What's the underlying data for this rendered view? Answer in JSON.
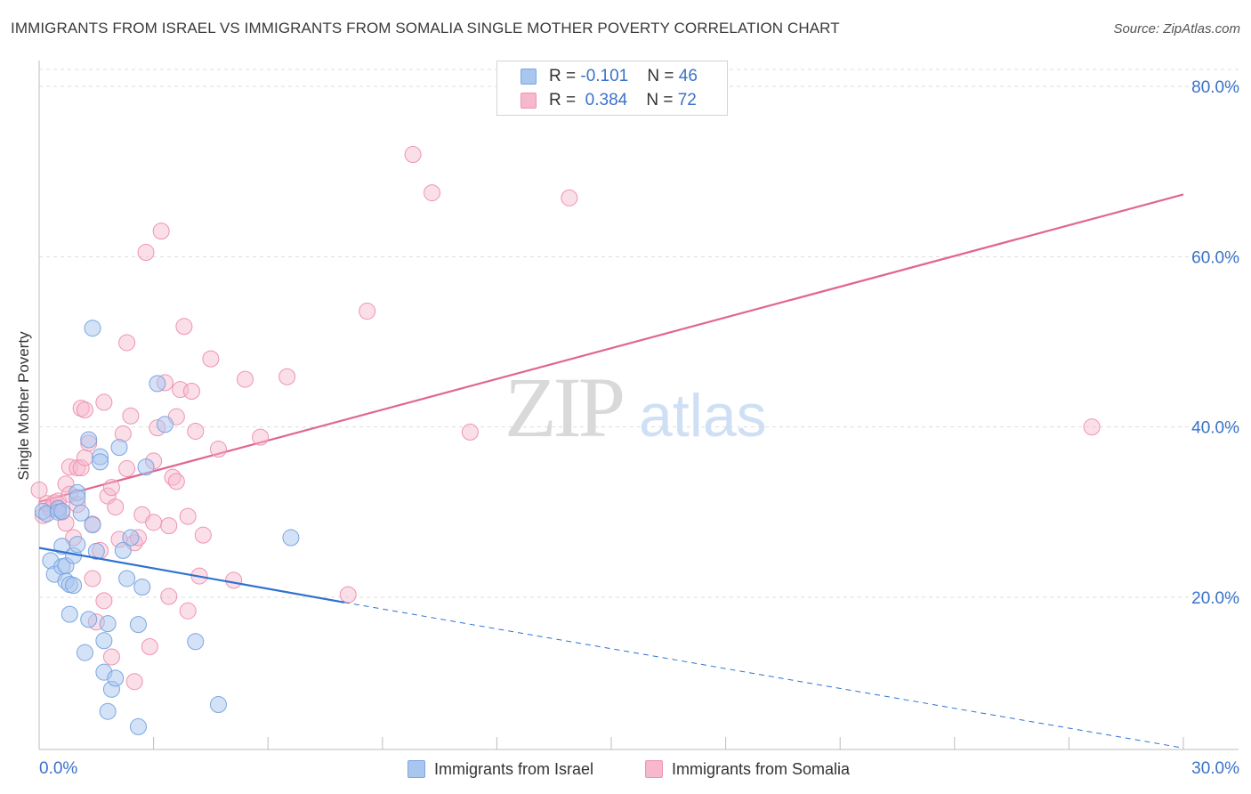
{
  "header": {
    "title": "IMMIGRANTS FROM ISRAEL VS IMMIGRANTS FROM SOMALIA SINGLE MOTHER POVERTY CORRELATION CHART",
    "source": "Source: ZipAtlas.com"
  },
  "watermark": {
    "zip": "ZIP",
    "atlas": "atlas"
  },
  "legend": {
    "israel": {
      "r_label": "R = ",
      "r_value": "-0.101",
      "n_label": "N = ",
      "n_value": "46"
    },
    "somalia": {
      "r_label": "R = ",
      "r_value": "0.384",
      "n_label": "N = ",
      "n_value": "72"
    }
  },
  "bottom_legend": {
    "israel": "Immigrants from Israel",
    "somalia": "Immigrants from Somalia"
  },
  "colors": {
    "israel_fill": "#a9c6ef",
    "israel_stroke": "#7aa6e0",
    "israel_line": "#2f72d0",
    "somalia_fill": "#f7b8cb",
    "somalia_stroke": "#ee93b1",
    "somalia_line": "#e06690",
    "axis_text": "#3a72c8",
    "grid": "#dddddd"
  },
  "chart_data": {
    "type": "scatter",
    "title": "IMMIGRANTS FROM ISRAEL VS IMMIGRANTS FROM SOMALIA SINGLE MOTHER POVERTY CORRELATION CHART",
    "xlabel": "",
    "ylabel": "Single Mother Poverty",
    "xlim": [
      0,
      30
    ],
    "ylim": [
      0,
      85
    ],
    "x_tick_labels": [
      {
        "value": 0,
        "label": "0.0%"
      },
      {
        "value": 30,
        "label": "30.0%"
      }
    ],
    "y_tick_labels": [
      {
        "value": 20,
        "label": "20.0%"
      },
      {
        "value": 40,
        "label": "40.0%"
      },
      {
        "value": 60,
        "label": "60.0%"
      },
      {
        "value": 80,
        "label": "80.0%"
      }
    ],
    "x_ticks": [
      0,
      3,
      6,
      9,
      12,
      15,
      18,
      21,
      24,
      27,
      30
    ],
    "series": [
      {
        "name": "Immigrants from Israel",
        "r": -0.101,
        "n": 46,
        "trend": {
          "solid": [
            [
              0,
              25.8
            ],
            [
              8,
              19.4
            ]
          ],
          "dashed": [
            [
              8,
              19.4
            ],
            [
              30,
              2.3
            ]
          ]
        },
        "points": [
          [
            0.1,
            30.1
          ],
          [
            0.2,
            29.8
          ],
          [
            0.3,
            24.3
          ],
          [
            0.4,
            22.7
          ],
          [
            0.5,
            30.4
          ],
          [
            0.6,
            26.0
          ],
          [
            0.5,
            30.0
          ],
          [
            0.6,
            23.6
          ],
          [
            0.7,
            23.7
          ],
          [
            0.7,
            21.9
          ],
          [
            0.8,
            18.0
          ],
          [
            0.8,
            21.5
          ],
          [
            0.9,
            21.4
          ],
          [
            0.9,
            24.9
          ],
          [
            1.0,
            26.2
          ],
          [
            1.0,
            32.3
          ],
          [
            1.0,
            31.7
          ],
          [
            1.1,
            29.9
          ],
          [
            1.2,
            13.5
          ],
          [
            1.3,
            38.5
          ],
          [
            1.3,
            17.4
          ],
          [
            1.4,
            28.5
          ],
          [
            1.4,
            51.6
          ],
          [
            1.5,
            25.4
          ],
          [
            1.6,
            36.5
          ],
          [
            1.6,
            35.9
          ],
          [
            1.7,
            14.9
          ],
          [
            1.7,
            11.2
          ],
          [
            1.8,
            6.6
          ],
          [
            1.8,
            16.9
          ],
          [
            1.9,
            9.2
          ],
          [
            2.0,
            10.5
          ],
          [
            2.1,
            37.6
          ],
          [
            2.2,
            25.5
          ],
          [
            2.3,
            22.2
          ],
          [
            2.4,
            27.0
          ],
          [
            2.6,
            4.8
          ],
          [
            2.6,
            16.8
          ],
          [
            2.7,
            21.2
          ],
          [
            2.8,
            35.3
          ],
          [
            3.1,
            45.1
          ],
          [
            3.3,
            40.3
          ],
          [
            4.1,
            14.8
          ],
          [
            4.7,
            7.4
          ],
          [
            6.6,
            27.0
          ],
          [
            0.6,
            30.1
          ]
        ]
      },
      {
        "name": "Immigrants from Somalia",
        "r": 0.384,
        "n": 72,
        "trend": {
          "solid": [
            [
              0,
              31.2
            ],
            [
              30,
              67.3
            ]
          ]
        },
        "points": [
          [
            0.0,
            32.6
          ],
          [
            0.1,
            29.6
          ],
          [
            0.2,
            31.0
          ],
          [
            0.3,
            30.4
          ],
          [
            0.4,
            31.1
          ],
          [
            0.5,
            30.5
          ],
          [
            0.5,
            31.3
          ],
          [
            0.6,
            30.0
          ],
          [
            0.7,
            33.3
          ],
          [
            0.7,
            28.7
          ],
          [
            0.8,
            32.1
          ],
          [
            0.8,
            35.3
          ],
          [
            0.9,
            27.0
          ],
          [
            1.0,
            30.9
          ],
          [
            1.0,
            35.2
          ],
          [
            1.1,
            35.2
          ],
          [
            1.1,
            42.2
          ],
          [
            1.2,
            42.0
          ],
          [
            1.2,
            36.4
          ],
          [
            1.3,
            38.1
          ],
          [
            1.4,
            28.6
          ],
          [
            1.4,
            22.2
          ],
          [
            1.5,
            17.1
          ],
          [
            1.6,
            25.5
          ],
          [
            1.7,
            42.9
          ],
          [
            1.7,
            19.6
          ],
          [
            1.8,
            31.9
          ],
          [
            1.9,
            13.0
          ],
          [
            1.9,
            32.9
          ],
          [
            2.0,
            30.6
          ],
          [
            2.1,
            26.8
          ],
          [
            2.2,
            39.2
          ],
          [
            2.3,
            35.1
          ],
          [
            2.3,
            49.9
          ],
          [
            2.4,
            41.3
          ],
          [
            2.5,
            26.4
          ],
          [
            2.5,
            10.1
          ],
          [
            2.6,
            27.0
          ],
          [
            2.7,
            29.7
          ],
          [
            2.8,
            60.5
          ],
          [
            2.9,
            14.2
          ],
          [
            3.0,
            28.8
          ],
          [
            3.0,
            36.0
          ],
          [
            3.1,
            39.9
          ],
          [
            3.2,
            63.0
          ],
          [
            3.3,
            45.2
          ],
          [
            3.4,
            28.4
          ],
          [
            3.4,
            20.1
          ],
          [
            3.5,
            34.1
          ],
          [
            3.6,
            41.2
          ],
          [
            3.6,
            33.6
          ],
          [
            3.7,
            44.4
          ],
          [
            3.8,
            51.8
          ],
          [
            3.9,
            18.4
          ],
          [
            3.9,
            29.5
          ],
          [
            4.0,
            44.2
          ],
          [
            4.1,
            39.5
          ],
          [
            4.2,
            22.5
          ],
          [
            4.3,
            27.3
          ],
          [
            4.5,
            48.0
          ],
          [
            4.7,
            37.4
          ],
          [
            5.1,
            22.0
          ],
          [
            5.4,
            45.6
          ],
          [
            5.8,
            38.8
          ],
          [
            6.5,
            45.9
          ],
          [
            8.1,
            20.3
          ],
          [
            8.6,
            53.6
          ],
          [
            9.8,
            72.0
          ],
          [
            10.3,
            67.5
          ],
          [
            11.3,
            39.4
          ],
          [
            13.9,
            66.9
          ],
          [
            27.6,
            40.0
          ]
        ]
      }
    ]
  }
}
